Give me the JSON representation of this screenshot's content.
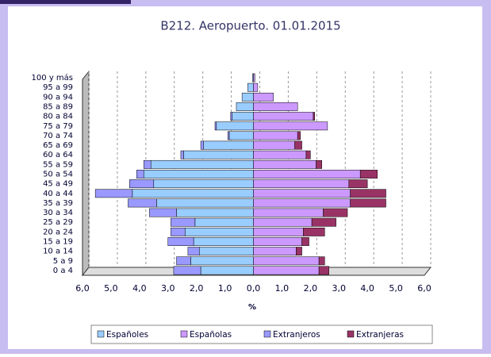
{
  "chart_data": {
    "type": "pyramid",
    "title": "B212. Aeropuerto. 01.01.2015",
    "x_label": "%",
    "categories": [
      "0 a 4",
      "5 a 9",
      "10 a 14",
      "15 a 19",
      "20 a 24",
      "25 a 29",
      "30 a 34",
      "35 a 39",
      "40 a 44",
      "45 a 49",
      "50 a 54",
      "55 a 59",
      "60 a 64",
      "65 a 69",
      "70 a 74",
      "75 a 79",
      "80 a 84",
      "85 a 89",
      "90 a 94",
      "95 a 99",
      "100 y más"
    ],
    "series": [
      {
        "name": "Españoles",
        "color": "#99ccff",
        "side": "left",
        "values": [
          1.85,
          2.2,
          1.9,
          2.1,
          2.4,
          2.05,
          2.7,
          3.4,
          4.25,
          3.5,
          3.85,
          3.6,
          2.45,
          1.75,
          0.85,
          1.3,
          0.75,
          0.6,
          0.4,
          0.2,
          0.03
        ]
      },
      {
        "name": "Españolas",
        "color": "#cc99ff",
        "side": "right",
        "values": [
          2.3,
          2.3,
          1.5,
          1.7,
          1.75,
          2.05,
          2.45,
          3.4,
          3.4,
          3.35,
          3.75,
          2.2,
          1.85,
          1.45,
          1.55,
          2.6,
          2.1,
          1.55,
          0.7,
          0.15,
          0.05
        ]
      },
      {
        "name": "Extranjeros",
        "color": "#9999ff",
        "side": "left",
        "values": [
          0.95,
          0.5,
          0.4,
          0.9,
          0.5,
          0.85,
          0.95,
          1.0,
          1.3,
          0.85,
          0.25,
          0.25,
          0.1,
          0.1,
          0.05,
          0.05,
          0.05,
          0,
          0,
          0,
          0
        ]
      },
      {
        "name": "Extranjeras",
        "color": "#993366",
        "side": "right",
        "values": [
          0.35,
          0.2,
          0.2,
          0.25,
          0.75,
          0.85,
          0.85,
          1.25,
          1.25,
          0.65,
          0.6,
          0.2,
          0.15,
          0.25,
          0.1,
          0,
          0.05,
          0,
          0,
          0,
          0
        ]
      }
    ],
    "xlim": [
      -6,
      6
    ],
    "xticks": [
      {
        "value": -6,
        "label": "6,0"
      },
      {
        "value": -5,
        "label": "5,0"
      },
      {
        "value": -4,
        "label": "4,0"
      },
      {
        "value": -3,
        "label": "3,0"
      },
      {
        "value": -2,
        "label": "2,0"
      },
      {
        "value": -1,
        "label": "1,0"
      },
      {
        "value": 0,
        "label": "0,0"
      },
      {
        "value": 1,
        "label": "1,0"
      },
      {
        "value": 2,
        "label": "2,0"
      },
      {
        "value": 3,
        "label": "3,0"
      },
      {
        "value": 4,
        "label": "4,0"
      },
      {
        "value": 5,
        "label": "5,0"
      },
      {
        "value": 6,
        "label": "6,0"
      }
    ],
    "grid": true,
    "legend": "bottom"
  }
}
